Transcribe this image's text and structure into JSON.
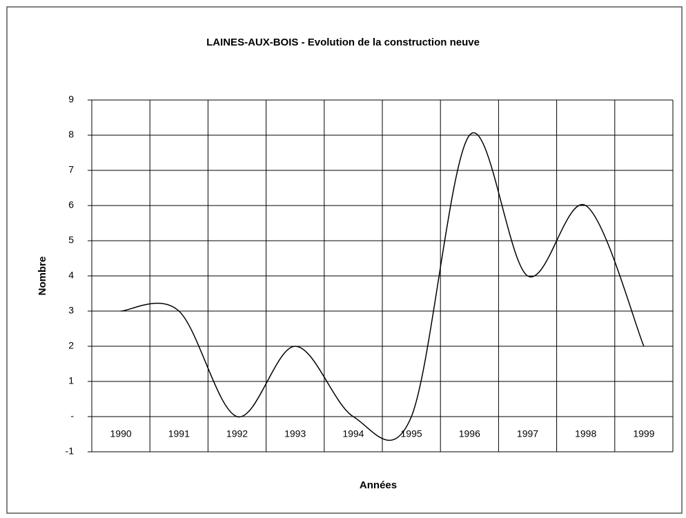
{
  "chart_data": {
    "type": "line",
    "title": "LAINES-AUX-BOIS - Evolution de la construction neuve",
    "x_label": "Années",
    "y_label": "Nombre",
    "categories": [
      "1990",
      "1991",
      "1992",
      "1993",
      "1994",
      "1995",
      "1996",
      "1997",
      "1998",
      "1999"
    ],
    "series": [
      {
        "name": "Nombre",
        "color": "#000000",
        "values": [
          3,
          3,
          0,
          2,
          0,
          0,
          8,
          4,
          6,
          2
        ]
      }
    ],
    "smooth": true,
    "ylim": [
      -1,
      9
    ],
    "yticks": [
      -1,
      {
        "value": 0,
        "label": "-"
      },
      1,
      2,
      3,
      4,
      5,
      6,
      7,
      8,
      9
    ],
    "grid": true
  }
}
